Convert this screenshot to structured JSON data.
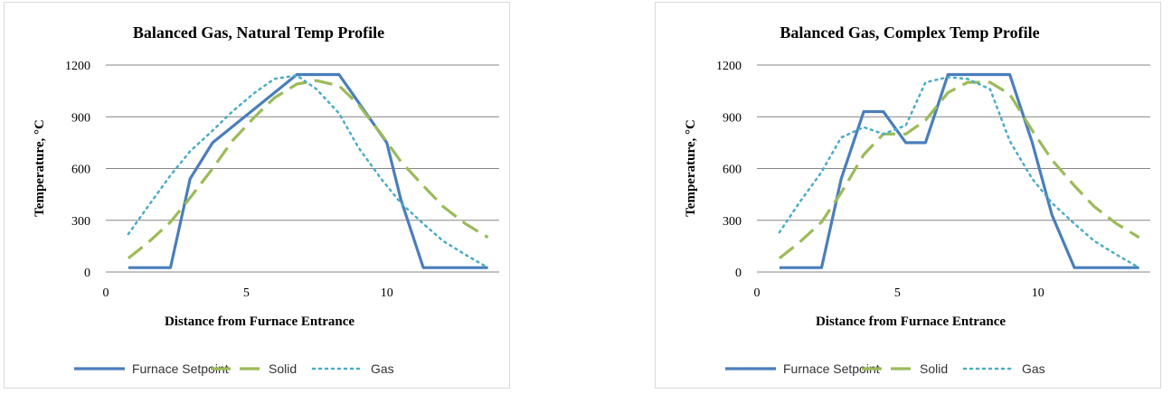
{
  "colors": {
    "furnace_setpoint": "#4a7ebb",
    "solid": "#9bbb59",
    "gas": "#4bacc6",
    "gridline": "#868686"
  },
  "chart_data": [
    {
      "type": "line",
      "title": "Balanced Gas, Natural Temp Profile",
      "xlabel": "Distance from Furnace Entrance",
      "ylabel": "Temperature, °C",
      "xlim": [
        0,
        14
      ],
      "ylim": [
        0,
        1200
      ],
      "xticks": [
        "0",
        "5",
        "10"
      ],
      "yticks": [
        "0",
        "300",
        "600",
        "900",
        "1200"
      ],
      "grid": "horizontal",
      "legend_position": "bottom",
      "series": [
        {
          "name": "Furnace Setpoint",
          "style": "solid",
          "color": "#4a7ebb",
          "x": [
            0.8,
            2.3,
            3.0,
            3.8,
            6.8,
            8.3,
            10.0,
            10.5,
            11.3,
            13.6
          ],
          "y": [
            25,
            25,
            540,
            750,
            1145,
            1145,
            750,
            420,
            25,
            25
          ]
        },
        {
          "name": "Solid",
          "style": "dashed",
          "color": "#9bbb59",
          "x": [
            0.8,
            1.5,
            2.3,
            3.0,
            3.8,
            4.5,
            5.3,
            6.0,
            6.8,
            7.5,
            8.3,
            9.0,
            9.8,
            10.5,
            11.3,
            12.0,
            12.8,
            13.6
          ],
          "y": [
            80,
            170,
            290,
            430,
            600,
            760,
            900,
            1010,
            1090,
            1110,
            1080,
            970,
            800,
            640,
            500,
            380,
            280,
            200
          ]
        },
        {
          "name": "Gas",
          "style": "dotted",
          "color": "#4bacc6",
          "x": [
            0.8,
            1.5,
            2.3,
            3.0,
            3.8,
            4.5,
            5.3,
            6.0,
            6.8,
            7.5,
            8.3,
            9.0,
            9.8,
            10.5,
            11.3,
            12.0,
            12.8,
            13.6
          ],
          "y": [
            220,
            380,
            560,
            700,
            820,
            930,
            1040,
            1120,
            1140,
            1060,
            920,
            720,
            540,
            400,
            280,
            180,
            100,
            25
          ]
        }
      ]
    },
    {
      "type": "line",
      "title": "Balanced Gas, Complex Temp Profile",
      "xlabel": "Distance from Furnace Entrance",
      "ylabel": "Temperature, °C",
      "xlim": [
        0,
        14
      ],
      "ylim": [
        0,
        1200
      ],
      "xticks": [
        "0",
        "5",
        "10"
      ],
      "yticks": [
        "0",
        "300",
        "600",
        "900",
        "1200"
      ],
      "grid": "horizontal",
      "legend_position": "bottom",
      "series": [
        {
          "name": "Furnace Setpoint",
          "style": "solid",
          "color": "#4a7ebb",
          "x": [
            0.8,
            2.3,
            3.0,
            3.8,
            4.5,
            5.3,
            6.0,
            6.8,
            8.3,
            9.0,
            9.8,
            10.5,
            11.3,
            13.6
          ],
          "y": [
            25,
            25,
            540,
            930,
            930,
            750,
            750,
            1145,
            1145,
            1145,
            750,
            330,
            25,
            25
          ]
        },
        {
          "name": "Solid",
          "style": "dashed",
          "color": "#9bbb59",
          "x": [
            0.8,
            1.5,
            2.3,
            3.0,
            3.8,
            4.5,
            5.3,
            6.0,
            6.8,
            7.5,
            8.3,
            9.0,
            9.8,
            10.5,
            11.3,
            12.0,
            12.8,
            13.6
          ],
          "y": [
            80,
            170,
            290,
            460,
            680,
            800,
            800,
            880,
            1040,
            1100,
            1100,
            1030,
            820,
            650,
            500,
            380,
            280,
            200
          ]
        },
        {
          "name": "Gas",
          "style": "dotted",
          "color": "#4bacc6",
          "x": [
            0.8,
            1.5,
            2.3,
            3.0,
            3.8,
            4.5,
            5.3,
            6.0,
            6.8,
            7.5,
            8.3,
            9.0,
            9.8,
            10.5,
            11.3,
            12.0,
            12.8,
            13.6
          ],
          "y": [
            230,
            400,
            580,
            780,
            840,
            800,
            850,
            1100,
            1130,
            1120,
            1060,
            760,
            540,
            400,
            280,
            180,
            100,
            25
          ]
        }
      ]
    }
  ]
}
